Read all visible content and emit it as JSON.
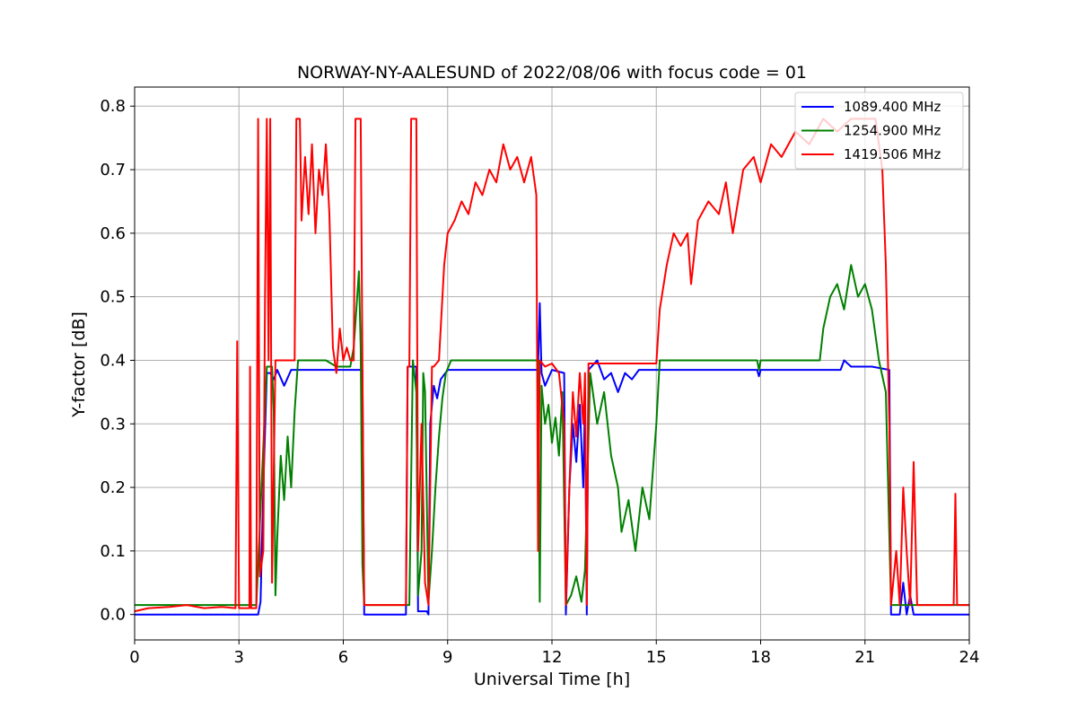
{
  "chart_data": {
    "type": "line",
    "title": "NORWAY-NY-AALESUND of 2022/08/06 with focus code = 01",
    "xlabel": "Universal Time [h]",
    "ylabel": "Y-factor [dB]",
    "xlim": [
      0,
      24
    ],
    "ylim": [
      -0.04,
      0.83
    ],
    "xticks": [
      0,
      3,
      6,
      9,
      12,
      15,
      18,
      21,
      24
    ],
    "xtick_labels": [
      "0",
      "3",
      "6",
      "9",
      "12",
      "15",
      "18",
      "21",
      "24"
    ],
    "yticks": [
      0.0,
      0.1,
      0.2,
      0.3,
      0.4,
      0.5,
      0.6,
      0.7,
      0.8
    ],
    "ytick_labels": [
      "0.0",
      "0.1",
      "0.2",
      "0.3",
      "0.4",
      "0.5",
      "0.6",
      "0.7",
      "0.8"
    ],
    "grid": true,
    "legend_position": "top-right",
    "series": [
      {
        "name": "1089.400 MHz",
        "color": "#0000ff",
        "points": [
          [
            0.0,
            0.0
          ],
          [
            2.6,
            0.0
          ],
          [
            3.0,
            0.0
          ],
          [
            3.4,
            0.0
          ],
          [
            3.55,
            0.0
          ],
          [
            3.62,
            0.02
          ],
          [
            3.7,
            0.2
          ],
          [
            3.8,
            0.38
          ],
          [
            3.9,
            0.38
          ],
          [
            4.0,
            0.37
          ],
          [
            4.1,
            0.385
          ],
          [
            4.3,
            0.36
          ],
          [
            4.5,
            0.385
          ],
          [
            5.5,
            0.385
          ],
          [
            6.55,
            0.385
          ],
          [
            6.6,
            0.0
          ],
          [
            7.0,
            0.0
          ],
          [
            7.8,
            0.0
          ],
          [
            7.85,
            0.39
          ],
          [
            8.0,
            0.39
          ],
          [
            8.1,
            0.39
          ],
          [
            8.15,
            0.005
          ],
          [
            8.4,
            0.005
          ],
          [
            8.45,
            0.0
          ],
          [
            8.5,
            0.3
          ],
          [
            8.6,
            0.36
          ],
          [
            8.7,
            0.34
          ],
          [
            8.8,
            0.37
          ],
          [
            9.0,
            0.385
          ],
          [
            11.6,
            0.385
          ],
          [
            11.65,
            0.49
          ],
          [
            11.7,
            0.38
          ],
          [
            11.8,
            0.36
          ],
          [
            12.0,
            0.385
          ],
          [
            12.35,
            0.38
          ],
          [
            12.4,
            0.0
          ],
          [
            12.5,
            0.2
          ],
          [
            12.6,
            0.3
          ],
          [
            12.7,
            0.24
          ],
          [
            12.8,
            0.33
          ],
          [
            12.9,
            0.2
          ],
          [
            12.95,
            0.34
          ],
          [
            13.0,
            0.0
          ],
          [
            13.05,
            0.385
          ],
          [
            13.3,
            0.4
          ],
          [
            13.5,
            0.37
          ],
          [
            13.7,
            0.38
          ],
          [
            13.9,
            0.35
          ],
          [
            14.1,
            0.38
          ],
          [
            14.3,
            0.37
          ],
          [
            14.5,
            0.385
          ],
          [
            15.0,
            0.385
          ],
          [
            17.9,
            0.385
          ],
          [
            17.95,
            0.375
          ],
          [
            18.0,
            0.385
          ],
          [
            20.3,
            0.385
          ],
          [
            20.4,
            0.4
          ],
          [
            20.6,
            0.39
          ],
          [
            20.9,
            0.39
          ],
          [
            21.2,
            0.39
          ],
          [
            21.7,
            0.385
          ],
          [
            21.75,
            0.0
          ],
          [
            21.9,
            0.0
          ],
          [
            22.0,
            0.0
          ],
          [
            22.1,
            0.05
          ],
          [
            22.2,
            0.0
          ],
          [
            22.3,
            0.03
          ],
          [
            22.4,
            0.0
          ],
          [
            24.0,
            0.0
          ]
        ]
      },
      {
        "name": "1254.900 MHz",
        "color": "#008000",
        "points": [
          [
            0.0,
            0.015
          ],
          [
            1.0,
            0.015
          ],
          [
            2.5,
            0.015
          ],
          [
            3.0,
            0.015
          ],
          [
            3.5,
            0.015
          ],
          [
            3.8,
            0.39
          ],
          [
            3.95,
            0.39
          ],
          [
            4.0,
            0.32
          ],
          [
            4.05,
            0.03
          ],
          [
            4.1,
            0.12
          ],
          [
            4.2,
            0.25
          ],
          [
            4.3,
            0.18
          ],
          [
            4.4,
            0.28
          ],
          [
            4.5,
            0.2
          ],
          [
            4.6,
            0.32
          ],
          [
            4.7,
            0.4
          ],
          [
            5.0,
            0.4
          ],
          [
            5.5,
            0.4
          ],
          [
            5.8,
            0.39
          ],
          [
            6.2,
            0.39
          ],
          [
            6.3,
            0.42
          ],
          [
            6.4,
            0.5
          ],
          [
            6.45,
            0.54
          ],
          [
            6.5,
            0.42
          ],
          [
            6.55,
            0.08
          ],
          [
            6.6,
            0.015
          ],
          [
            7.0,
            0.015
          ],
          [
            7.9,
            0.015
          ],
          [
            8.0,
            0.4
          ],
          [
            8.1,
            0.35
          ],
          [
            8.15,
            0.03
          ],
          [
            8.25,
            0.1
          ],
          [
            8.3,
            0.38
          ],
          [
            8.35,
            0.35
          ],
          [
            8.45,
            0.02
          ],
          [
            8.55,
            0.1
          ],
          [
            8.65,
            0.2
          ],
          [
            8.75,
            0.28
          ],
          [
            8.85,
            0.34
          ],
          [
            8.95,
            0.38
          ],
          [
            9.1,
            0.4
          ],
          [
            10.0,
            0.4
          ],
          [
            11.0,
            0.4
          ],
          [
            11.6,
            0.4
          ],
          [
            11.65,
            0.02
          ],
          [
            11.7,
            0.36
          ],
          [
            11.8,
            0.3
          ],
          [
            11.9,
            0.33
          ],
          [
            12.0,
            0.27
          ],
          [
            12.1,
            0.31
          ],
          [
            12.2,
            0.25
          ],
          [
            12.3,
            0.35
          ],
          [
            12.4,
            0.015
          ],
          [
            12.55,
            0.03
          ],
          [
            12.7,
            0.06
          ],
          [
            12.85,
            0.02
          ],
          [
            12.95,
            0.07
          ],
          [
            13.1,
            0.38
          ],
          [
            13.3,
            0.3
          ],
          [
            13.5,
            0.35
          ],
          [
            13.7,
            0.25
          ],
          [
            13.9,
            0.2
          ],
          [
            14.0,
            0.13
          ],
          [
            14.2,
            0.18
          ],
          [
            14.4,
            0.1
          ],
          [
            14.6,
            0.2
          ],
          [
            14.8,
            0.15
          ],
          [
            15.0,
            0.3
          ],
          [
            15.1,
            0.4
          ],
          [
            15.5,
            0.4
          ],
          [
            17.0,
            0.4
          ],
          [
            17.9,
            0.4
          ],
          [
            17.95,
            0.385
          ],
          [
            18.0,
            0.4
          ],
          [
            19.7,
            0.4
          ],
          [
            19.8,
            0.45
          ],
          [
            20.0,
            0.5
          ],
          [
            20.2,
            0.52
          ],
          [
            20.4,
            0.48
          ],
          [
            20.6,
            0.55
          ],
          [
            20.8,
            0.5
          ],
          [
            21.0,
            0.52
          ],
          [
            21.2,
            0.48
          ],
          [
            21.4,
            0.4
          ],
          [
            21.6,
            0.35
          ],
          [
            21.75,
            0.015
          ],
          [
            22.0,
            0.015
          ],
          [
            22.5,
            0.015
          ],
          [
            24.0,
            0.015
          ]
        ]
      },
      {
        "name": "1419.506 MHz",
        "color": "#ff0000",
        "points": [
          [
            0.0,
            0.005
          ],
          [
            0.4,
            0.01
          ],
          [
            1.0,
            0.012
          ],
          [
            1.5,
            0.015
          ],
          [
            2.0,
            0.01
          ],
          [
            2.5,
            0.012
          ],
          [
            2.9,
            0.01
          ],
          [
            2.95,
            0.43
          ],
          [
            3.0,
            0.01
          ],
          [
            3.3,
            0.01
          ],
          [
            3.32,
            0.39
          ],
          [
            3.35,
            0.01
          ],
          [
            3.5,
            0.01
          ],
          [
            3.55,
            0.78
          ],
          [
            3.6,
            0.06
          ],
          [
            3.7,
            0.1
          ],
          [
            3.75,
            0.5
          ],
          [
            3.8,
            0.78
          ],
          [
            3.85,
            0.4
          ],
          [
            3.9,
            0.78
          ],
          [
            3.95,
            0.05
          ],
          [
            4.05,
            0.4
          ],
          [
            4.3,
            0.4
          ],
          [
            4.6,
            0.4
          ],
          [
            4.65,
            0.78
          ],
          [
            4.75,
            0.78
          ],
          [
            4.8,
            0.62
          ],
          [
            4.9,
            0.72
          ],
          [
            5.0,
            0.63
          ],
          [
            5.1,
            0.74
          ],
          [
            5.2,
            0.6
          ],
          [
            5.3,
            0.7
          ],
          [
            5.4,
            0.66
          ],
          [
            5.5,
            0.74
          ],
          [
            5.6,
            0.63
          ],
          [
            5.7,
            0.42
          ],
          [
            5.8,
            0.38
          ],
          [
            5.9,
            0.45
          ],
          [
            6.0,
            0.4
          ],
          [
            6.1,
            0.42
          ],
          [
            6.2,
            0.4
          ],
          [
            6.3,
            0.4
          ],
          [
            6.35,
            0.78
          ],
          [
            6.5,
            0.78
          ],
          [
            6.55,
            0.4
          ],
          [
            6.6,
            0.015
          ],
          [
            7.0,
            0.015
          ],
          [
            7.8,
            0.015
          ],
          [
            7.85,
            0.39
          ],
          [
            7.9,
            0.39
          ],
          [
            7.95,
            0.78
          ],
          [
            8.1,
            0.78
          ],
          [
            8.15,
            0.1
          ],
          [
            8.25,
            0.3
          ],
          [
            8.35,
            0.05
          ],
          [
            8.45,
            0.015
          ],
          [
            8.55,
            0.39
          ],
          [
            8.6,
            0.39
          ],
          [
            8.75,
            0.4
          ],
          [
            8.9,
            0.55
          ],
          [
            9.0,
            0.6
          ],
          [
            9.2,
            0.62
          ],
          [
            9.4,
            0.65
          ],
          [
            9.6,
            0.63
          ],
          [
            9.8,
            0.68
          ],
          [
            10.0,
            0.66
          ],
          [
            10.2,
            0.7
          ],
          [
            10.4,
            0.68
          ],
          [
            10.6,
            0.74
          ],
          [
            10.8,
            0.7
          ],
          [
            11.0,
            0.72
          ],
          [
            11.2,
            0.68
          ],
          [
            11.4,
            0.72
          ],
          [
            11.55,
            0.66
          ],
          [
            11.6,
            0.1
          ],
          [
            11.65,
            0.4
          ],
          [
            11.8,
            0.39
          ],
          [
            12.0,
            0.395
          ],
          [
            12.2,
            0.38
          ],
          [
            12.35,
            0.3
          ],
          [
            12.4,
            0.015
          ],
          [
            12.5,
            0.2
          ],
          [
            12.6,
            0.35
          ],
          [
            12.7,
            0.28
          ],
          [
            12.8,
            0.38
          ],
          [
            12.9,
            0.3
          ],
          [
            12.95,
            0.38
          ],
          [
            13.0,
            0.015
          ],
          [
            13.05,
            0.395
          ],
          [
            13.5,
            0.395
          ],
          [
            14.0,
            0.395
          ],
          [
            14.5,
            0.395
          ],
          [
            15.0,
            0.395
          ],
          [
            15.1,
            0.48
          ],
          [
            15.3,
            0.55
          ],
          [
            15.5,
            0.6
          ],
          [
            15.7,
            0.58
          ],
          [
            15.9,
            0.6
          ],
          [
            16.0,
            0.52
          ],
          [
            16.2,
            0.62
          ],
          [
            16.5,
            0.65
          ],
          [
            16.8,
            0.63
          ],
          [
            17.0,
            0.68
          ],
          [
            17.2,
            0.6
          ],
          [
            17.5,
            0.7
          ],
          [
            17.8,
            0.72
          ],
          [
            18.0,
            0.68
          ],
          [
            18.3,
            0.74
          ],
          [
            18.6,
            0.72
          ],
          [
            19.0,
            0.76
          ],
          [
            19.4,
            0.74
          ],
          [
            19.8,
            0.78
          ],
          [
            20.2,
            0.76
          ],
          [
            20.6,
            0.78
          ],
          [
            21.0,
            0.78
          ],
          [
            21.3,
            0.78
          ],
          [
            21.5,
            0.7
          ],
          [
            21.6,
            0.55
          ],
          [
            21.7,
            0.3
          ],
          [
            21.75,
            0.015
          ],
          [
            21.9,
            0.1
          ],
          [
            22.0,
            0.015
          ],
          [
            22.1,
            0.2
          ],
          [
            22.2,
            0.1
          ],
          [
            22.3,
            0.015
          ],
          [
            22.4,
            0.24
          ],
          [
            22.5,
            0.015
          ],
          [
            23.0,
            0.015
          ],
          [
            23.55,
            0.015
          ],
          [
            23.6,
            0.19
          ],
          [
            23.65,
            0.015
          ],
          [
            24.0,
            0.015
          ]
        ]
      }
    ]
  }
}
